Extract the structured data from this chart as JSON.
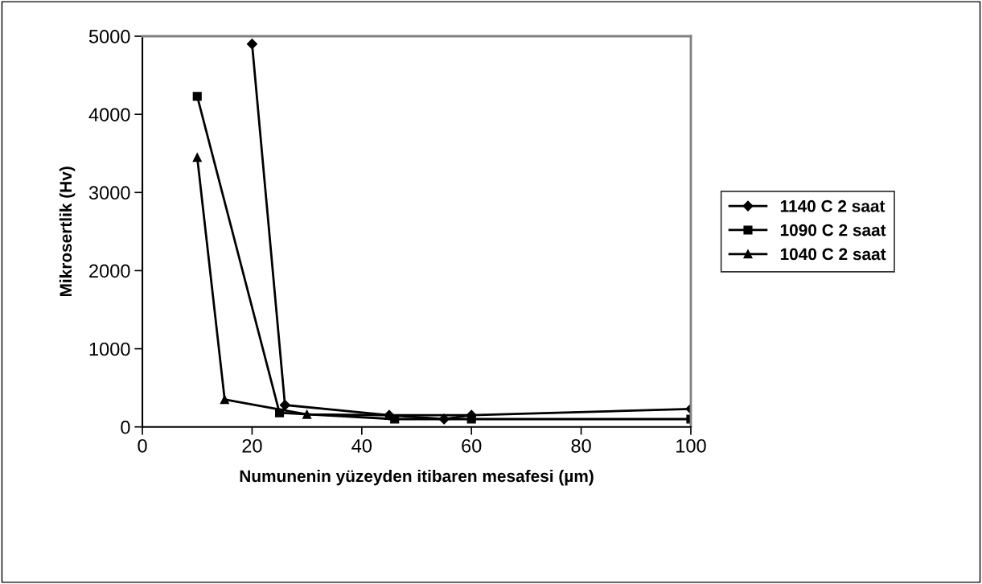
{
  "chart_data": {
    "type": "line",
    "xlabel": "Numunenin yüzeyden itibaren mesafesi (µm)",
    "ylabel": "Mikrosertlik (Hv)",
    "xlim": [
      0,
      100
    ],
    "xticks": [
      0,
      20,
      40,
      60,
      80,
      100
    ],
    "ylim": [
      0,
      5000
    ],
    "yticks": [
      0,
      1000,
      2000,
      3000,
      4000,
      5000
    ],
    "grid": false,
    "legend": "right",
    "line_style": "solid",
    "series": [
      {
        "name": "1140 C 2 saat",
        "color": "#000000",
        "marker": "diamond",
        "x": [
          20,
          26,
          45,
          55,
          60,
          100
        ],
        "values": [
          4900,
          280,
          150,
          100,
          150,
          230
        ]
      },
      {
        "name": "1090 C 2 saat",
        "color": "#000000",
        "marker": "square",
        "x": [
          10,
          25,
          46,
          60,
          100
        ],
        "values": [
          4230,
          180,
          100,
          100,
          100
        ]
      },
      {
        "name": "1040 C 2 saat",
        "color": "#000000",
        "marker": "triangle",
        "x": [
          10,
          15,
          30,
          45,
          60
        ],
        "values": [
          3450,
          350,
          160,
          150,
          150
        ]
      }
    ]
  }
}
